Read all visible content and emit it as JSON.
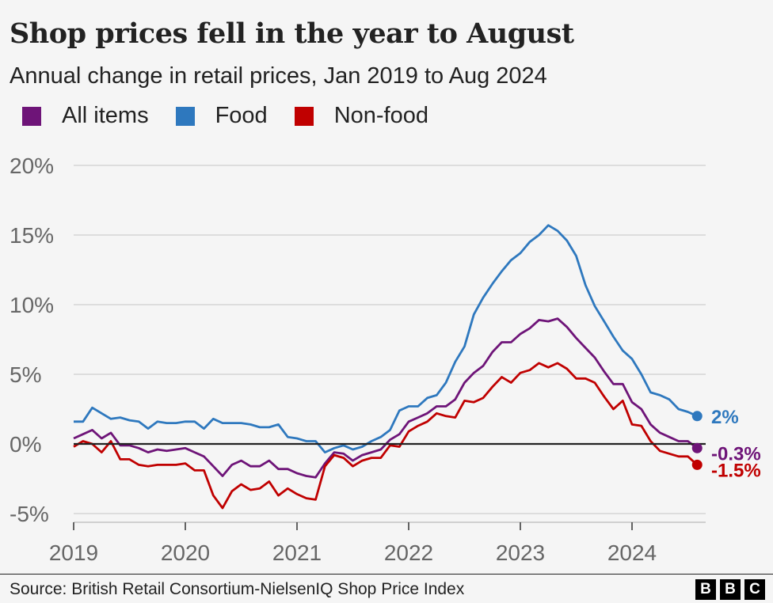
{
  "chart_data": {
    "type": "line",
    "title": "Shop prices fell in the year to August",
    "subtitle": "Annual change in retail prices, Jan 2019 to Aug 2024",
    "xlabel": "",
    "ylabel": "",
    "x_start": "2019-01",
    "x_end": "2024-08",
    "x_ticks": [
      "2019",
      "2020",
      "2021",
      "2022",
      "2023",
      "2024"
    ],
    "y_ticks": [
      "20%",
      "15%",
      "10%",
      "5%",
      "0%",
      "-5%"
    ],
    "y_tick_values": [
      20,
      15,
      10,
      5,
      0,
      -5
    ],
    "ylim": [
      -5,
      20
    ],
    "grid": true,
    "legend_position": "top-left",
    "series": [
      {
        "name": "All items",
        "color": "#6e1478",
        "end_label": "-0.3%",
        "values": [
          0.4,
          0.7,
          1.0,
          0.4,
          0.8,
          -0.1,
          -0.1,
          -0.3,
          -0.6,
          -0.4,
          -0.5,
          -0.4,
          -0.3,
          -0.6,
          -0.9,
          -1.6,
          -2.3,
          -1.5,
          -1.2,
          -1.6,
          -1.6,
          -1.2,
          -1.8,
          -1.8,
          -2.1,
          -2.3,
          -2.4,
          -1.4,
          -0.6,
          -0.7,
          -1.2,
          -0.8,
          -0.6,
          -0.4,
          0.3,
          0.7,
          1.6,
          1.9,
          2.2,
          2.7,
          2.7,
          3.2,
          4.4,
          5.1,
          5.6,
          6.6,
          7.3,
          7.3,
          7.9,
          8.3,
          8.9,
          8.8,
          9.0,
          8.4,
          7.6,
          6.9,
          6.2,
          5.2,
          4.3,
          4.3,
          3.0,
          2.5,
          1.4,
          0.8,
          0.5,
          0.2,
          0.2,
          -0.3
        ]
      },
      {
        "name": "Food",
        "color": "#2e78be",
        "end_label": "2%",
        "values": [
          1.6,
          1.6,
          2.6,
          2.2,
          1.8,
          1.9,
          1.7,
          1.6,
          1.1,
          1.6,
          1.5,
          1.5,
          1.6,
          1.6,
          1.1,
          1.8,
          1.5,
          1.5,
          1.5,
          1.4,
          1.2,
          1.2,
          1.4,
          0.5,
          0.4,
          0.2,
          0.2,
          -0.6,
          -0.3,
          -0.1,
          -0.4,
          -0.2,
          0.2,
          0.5,
          1.0,
          2.4,
          2.7,
          2.7,
          3.3,
          3.5,
          4.4,
          5.9,
          7.0,
          9.3,
          10.5,
          11.5,
          12.4,
          13.2,
          13.7,
          14.5,
          15.0,
          15.7,
          15.3,
          14.6,
          13.5,
          11.4,
          9.9,
          8.8,
          7.7,
          6.7,
          6.1,
          5.0,
          3.7,
          3.5,
          3.2,
          2.5,
          2.3,
          2.0
        ]
      },
      {
        "name": "Non-food",
        "color": "#c00000",
        "end_label": "-1.5%",
        "values": [
          -0.2,
          0.2,
          0.0,
          -0.6,
          0.2,
          -1.1,
          -1.1,
          -1.5,
          -1.6,
          -1.5,
          -1.5,
          -1.5,
          -1.4,
          -1.9,
          -1.9,
          -3.7,
          -4.6,
          -3.4,
          -2.9,
          -3.3,
          -3.2,
          -2.7,
          -3.7,
          -3.2,
          -3.6,
          -3.9,
          -4.0,
          -1.6,
          -0.8,
          -1.0,
          -1.6,
          -1.2,
          -1.0,
          -1.0,
          -0.1,
          -0.2,
          0.9,
          1.3,
          1.6,
          2.2,
          2.0,
          1.9,
          3.1,
          3.0,
          3.3,
          4.1,
          4.8,
          4.4,
          5.1,
          5.3,
          5.8,
          5.5,
          5.8,
          5.4,
          4.7,
          4.7,
          4.4,
          3.4,
          2.5,
          3.1,
          1.4,
          1.3,
          0.2,
          -0.5,
          -0.7,
          -0.9,
          -0.9,
          -1.5
        ]
      }
    ]
  },
  "footer": {
    "source": "Source: British Retail Consortium-NielsenIQ Shop Price Index",
    "logo": [
      "B",
      "B",
      "C"
    ]
  }
}
